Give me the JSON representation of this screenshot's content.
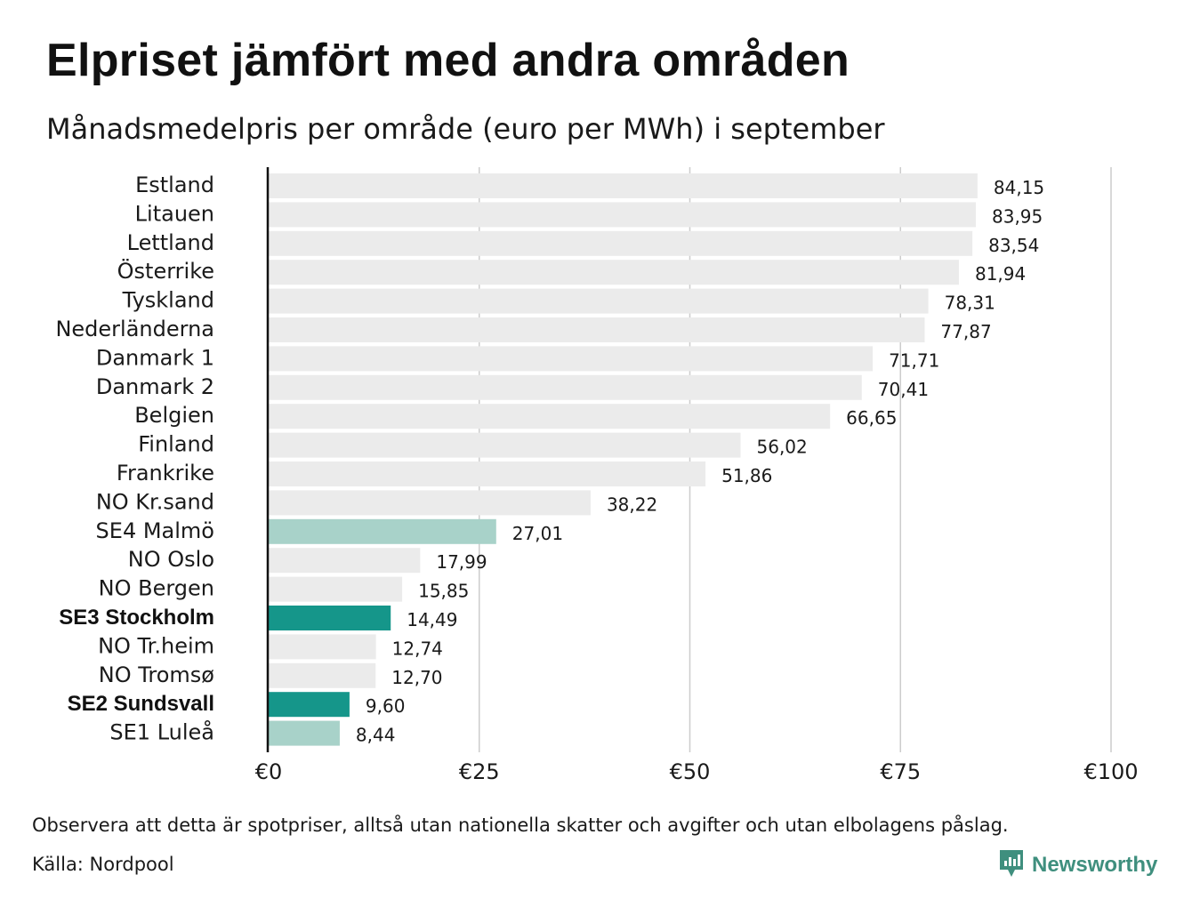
{
  "title": "Elpriset jämfört med andra områden",
  "subtitle": "Månadsmedelpris per område (euro per MWh) i september",
  "note": "Observera att detta är spotpriser, alltså utan nationella skatter och avgifter och utan elbolagens påslag.",
  "source": "Källa: Nordpool",
  "brand": {
    "name": "Newsworthy",
    "icon": "newsworthy-logo-icon"
  },
  "colors": {
    "default_bar": "#ebebeb",
    "highlight_dark": "#15968a",
    "highlight_light": "#a8d2c9",
    "grid": "#cccccc",
    "axis": "#111111",
    "brand": "#3f8f7e"
  },
  "chart_data": {
    "type": "bar",
    "orientation": "horizontal",
    "categories": [
      "Estland",
      "Litauen",
      "Lettland",
      "Österrike",
      "Tyskland",
      "Nederländerna",
      "Danmark 1",
      "Danmark 2",
      "Belgien",
      "Finland",
      "Frankrike",
      "NO Kr.sand",
      "SE4 Malmö",
      "NO Oslo",
      "NO Bergen",
      "SE3 Stockholm",
      "NO Tr.heim",
      "NO Tromsø",
      "SE2 Sundsvall",
      "SE1 Luleå"
    ],
    "values": [
      84.15,
      83.95,
      83.54,
      81.94,
      78.31,
      77.87,
      71.71,
      70.41,
      66.65,
      56.02,
      51.86,
      38.22,
      27.01,
      17.99,
      15.85,
      14.49,
      12.74,
      12.7,
      9.6,
      8.44
    ],
    "value_labels": [
      "84,15",
      "83,95",
      "83,54",
      "81,94",
      "78,31",
      "77,87",
      "71,71",
      "70,41",
      "66,65",
      "56,02",
      "51,86",
      "38,22",
      "27,01",
      "17,99",
      "15,85",
      "14,49",
      "12,74",
      "12,70",
      "9,60",
      "8,44"
    ],
    "highlight": [
      "none",
      "none",
      "none",
      "none",
      "none",
      "none",
      "none",
      "none",
      "none",
      "none",
      "none",
      "none",
      "light",
      "none",
      "none",
      "dark",
      "none",
      "none",
      "dark",
      "light"
    ],
    "bold_labels": [
      "SE3 Stockholm",
      "SE2 Sundsvall"
    ],
    "xlim": [
      0,
      100
    ],
    "xticks": [
      0,
      25,
      50,
      75,
      100
    ],
    "xtick_labels": [
      "€0",
      "€25",
      "€50",
      "€75",
      "€100"
    ],
    "xlabel": "",
    "ylabel": "",
    "grid": true
  }
}
